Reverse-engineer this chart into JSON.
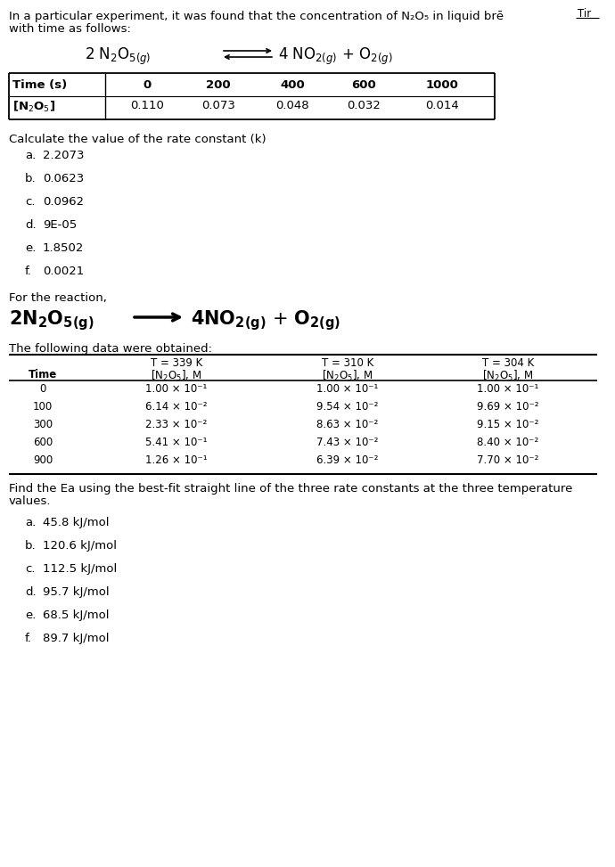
{
  "bg_color": "#ffffff",
  "text_color": "#000000",
  "intro_line1": "In a particular experiment, it was found that the concentration of N₂O₅ in liquid brē",
  "intro_line2": "with time as follows:",
  "corner_text": "Tir",
  "table1_time_vals": [
    "0",
    "200",
    "400",
    "600",
    "1000"
  ],
  "table1_conc_vals": [
    "0.110",
    "0.073",
    "0.048",
    "0.032",
    "0.014"
  ],
  "q1_text": "Calculate the value of the rate constant (k)",
  "q1_options": [
    [
      "a.",
      "2.2073"
    ],
    [
      "b.",
      "0.0623"
    ],
    [
      "c.",
      "0.0962"
    ],
    [
      "d.",
      "9E-05"
    ],
    [
      "e.",
      "1.8502"
    ],
    [
      "f.",
      "0.0021"
    ]
  ],
  "for_reaction_text": "For the reaction,",
  "following_data_text": "The following data were obtained:",
  "table2_time": [
    "0",
    "100",
    "300",
    "600",
    "900"
  ],
  "table2_339": [
    "1.00 × 10⁻¹",
    "6.14 × 10⁻²",
    "2.33 × 10⁻²",
    "5.41 × 10⁻¹",
    "1.26 × 10⁻¹"
  ],
  "table2_310": [
    "1.00 × 10⁻¹",
    "9.54 × 10⁻²",
    "8.63 × 10⁻²",
    "7.43 × 10⁻²",
    "6.39 × 10⁻²"
  ],
  "table2_304": [
    "1.00 × 10⁻¹",
    "9.69 × 10⁻²",
    "9.15 × 10⁻²",
    "8.40 × 10⁻²",
    "7.70 × 10⁻²"
  ],
  "find_ea_line1": "Find the Ea using the best-fit straight line of the three rate constants at the three temperature",
  "find_ea_line2": "values.",
  "q2_options": [
    [
      "a.",
      "45.8 kJ/mol"
    ],
    [
      "b.",
      "120.6 kJ/mol"
    ],
    [
      "c.",
      "112.5 kJ/mol"
    ],
    [
      "d.",
      "95.7 kJ/mol"
    ],
    [
      "e.",
      "68.5 kJ/mol"
    ],
    [
      "f.",
      "89.7 kJ/mol"
    ]
  ]
}
